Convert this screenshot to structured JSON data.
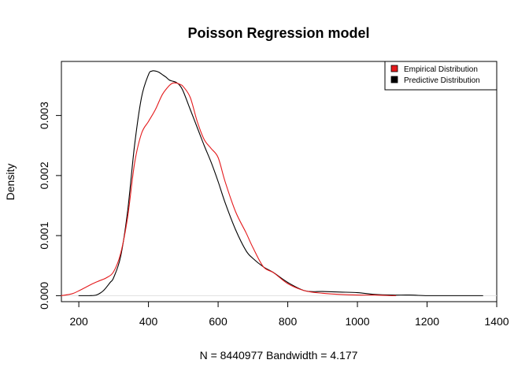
{
  "chart_data": {
    "type": "line",
    "title": "Poisson Regression model",
    "xlabel": "N = 8440977   Bandwidth = 4.177",
    "ylabel": "Density",
    "xlim": [
      150,
      1400
    ],
    "ylim": [
      -0.0001,
      0.0039
    ],
    "x_ticks": [
      200,
      400,
      600,
      800,
      1000,
      1200,
      1400
    ],
    "x_tick_labels": [
      "200",
      "400",
      "600",
      "800",
      "1000",
      "1200",
      "1400"
    ],
    "y_ticks": [
      0.0,
      0.001,
      0.002,
      0.003
    ],
    "y_tick_labels": [
      "0.000",
      "0.001",
      "0.002",
      "0.003"
    ],
    "grid": false,
    "legend_position": "top-right",
    "legend": [
      {
        "label": "Empirical Distribution",
        "color": "#e41a1c"
      },
      {
        "label": "Predictive Distribution",
        "color": "#000000"
      }
    ],
    "series": [
      {
        "name": "Predictive Distribution",
        "color": "#000000",
        "x": [
          200,
          230,
          250,
          270,
          290,
          300,
          320,
          340,
          360,
          380,
          400,
          410,
          420,
          430,
          440,
          450,
          460,
          470,
          480,
          490,
          500,
          520,
          540,
          560,
          580,
          600,
          620,
          650,
          680,
          700,
          730,
          760,
          800,
          850,
          900,
          950,
          1000,
          1050,
          1100,
          1150,
          1200,
          1250,
          1300,
          1360
        ],
        "y": [
          0.0,
          0.0,
          1e-05,
          8e-05,
          0.00022,
          0.0003,
          0.00065,
          0.0014,
          0.0025,
          0.0033,
          0.00368,
          0.00374,
          0.00374,
          0.00372,
          0.00368,
          0.00364,
          0.00359,
          0.00357,
          0.00355,
          0.0035,
          0.0034,
          0.0031,
          0.0028,
          0.0025,
          0.00222,
          0.0019,
          0.00155,
          0.0011,
          0.00075,
          0.00062,
          0.00048,
          0.00038,
          0.00022,
          8e-05,
          7e-05,
          6e-05,
          5e-05,
          2e-05,
          1e-05,
          1e-05,
          0.0,
          0.0,
          0.0,
          0.0
        ]
      },
      {
        "name": "Empirical Distribution",
        "color": "#e41a1c",
        "x": [
          150,
          180,
          200,
          220,
          240,
          260,
          280,
          300,
          320,
          340,
          360,
          380,
          400,
          420,
          440,
          460,
          470,
          480,
          490,
          500,
          520,
          540,
          560,
          580,
          600,
          620,
          650,
          680,
          700,
          730,
          760,
          800,
          850,
          900,
          950,
          1000,
          1050,
          1100,
          1110
        ],
        "y": [
          0.0,
          3e-05,
          8e-05,
          0.00014,
          0.0002,
          0.00025,
          0.0003,
          0.0004,
          0.0007,
          0.0013,
          0.0022,
          0.0027,
          0.0029,
          0.0031,
          0.00335,
          0.0035,
          0.00354,
          0.00354,
          0.00352,
          0.00348,
          0.0033,
          0.0029,
          0.0026,
          0.00245,
          0.0023,
          0.0019,
          0.0014,
          0.00105,
          0.0008,
          0.00048,
          0.00038,
          0.0002,
          8e-05,
          4e-05,
          2e-05,
          1e-05,
          1e-05,
          0.0,
          0.0
        ]
      }
    ]
  }
}
